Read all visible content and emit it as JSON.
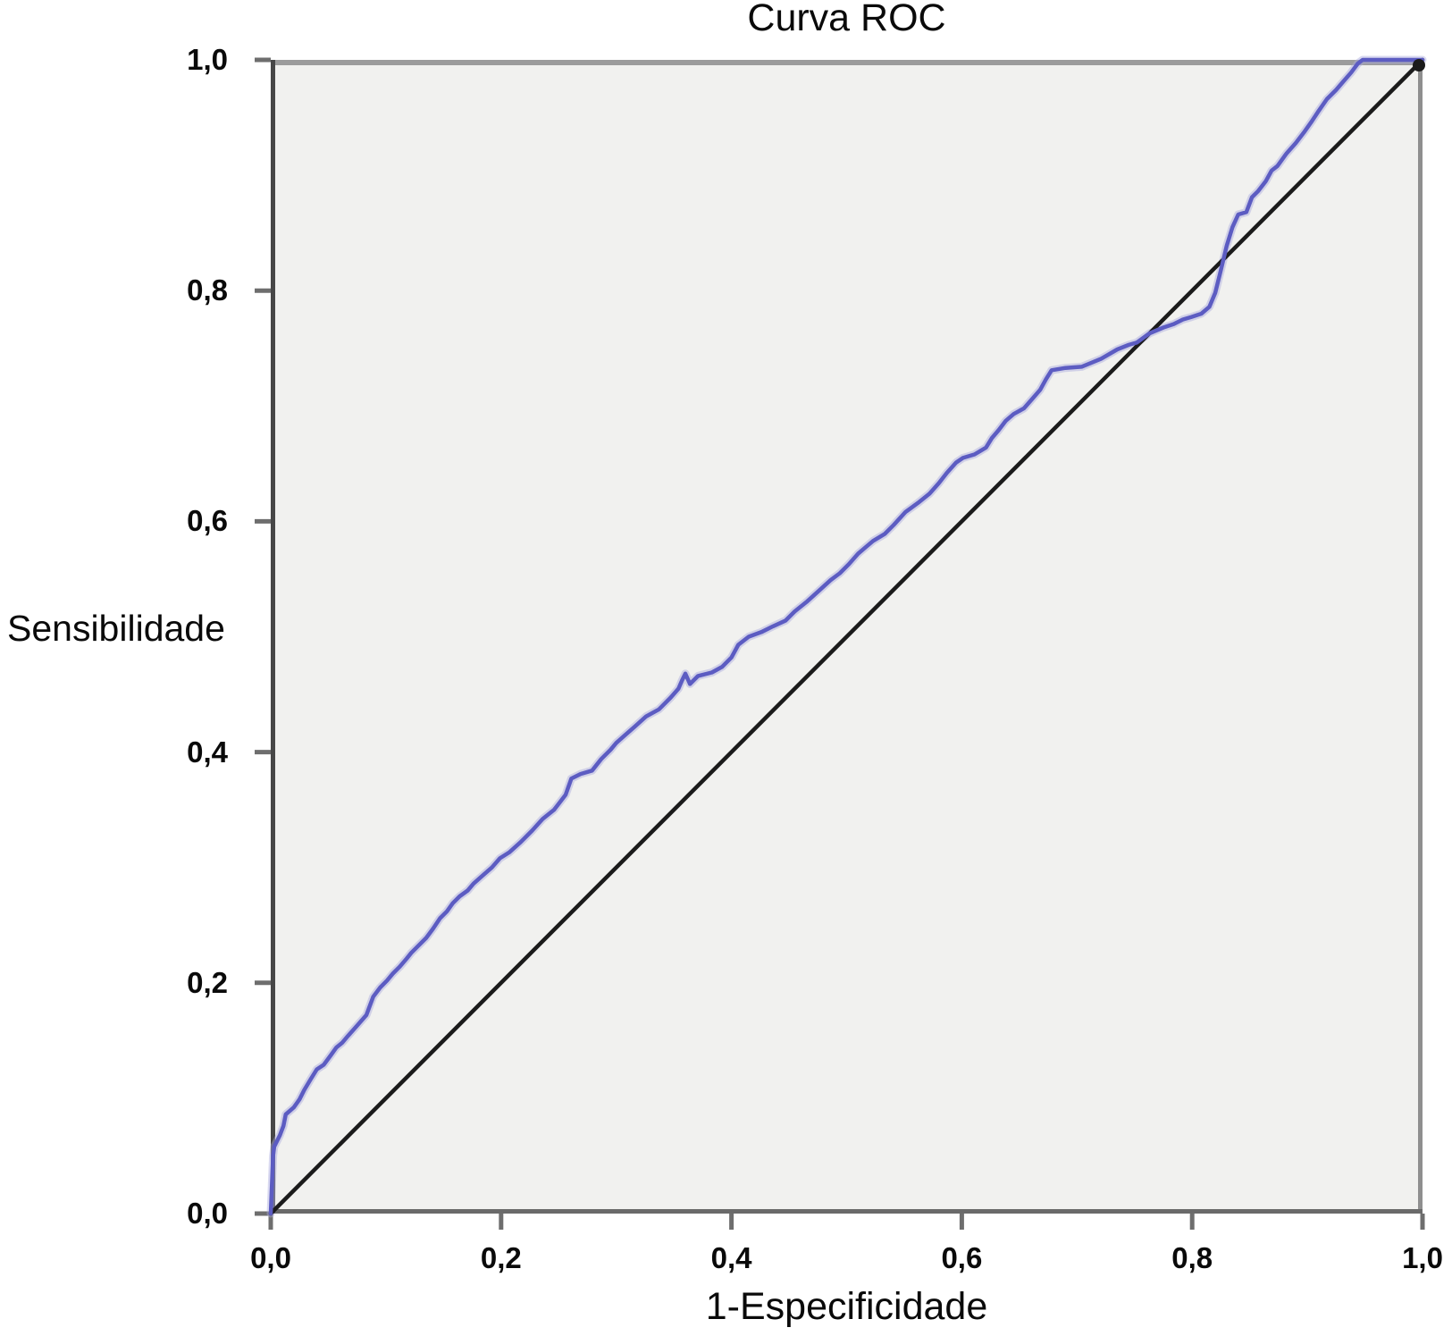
{
  "title": "Curva ROC",
  "axes": {
    "x_label": "1-Especificidade",
    "y_label": "Sensibilidade",
    "x_tick_labels": [
      "0,0",
      "0,2",
      "0,4",
      "0,6",
      "0,8",
      "1,0"
    ],
    "y_tick_labels": [
      "1,0",
      "0,8",
      "0,6",
      "0,4",
      "0,2",
      "0,0"
    ]
  },
  "colors": {
    "curve": "#5c5cc2",
    "curve_halo": "#a9a9de",
    "diagonal": "#1b1b1b",
    "plot_background": "#f1f1ef",
    "axis_left": "#474747",
    "axis_bottom": "#6a6a6a",
    "border_top": "#9c9c9c",
    "border_right": "#8f8f8f",
    "tick": "#6e6e6e",
    "text": "#0a0a0a"
  },
  "chart_data": {
    "type": "line",
    "title": "Curva ROC",
    "xlabel": "1-Especificidade",
    "ylabel": "Sensibilidade",
    "xlim": [
      0,
      1
    ],
    "ylim": [
      0,
      1
    ],
    "x_tick_values": [
      0.0,
      0.2,
      0.4,
      0.6,
      0.8,
      1.0
    ],
    "y_tick_values": [
      0.0,
      0.2,
      0.4,
      0.6,
      0.8,
      1.0
    ],
    "grid": false,
    "legend": "none",
    "series": [
      {
        "name": "ROC",
        "color": "#5c5cc2",
        "points": [
          [
            0.0,
            0.0
          ],
          [
            0.002,
            0.05
          ],
          [
            0.003,
            0.058
          ],
          [
            0.008,
            0.068
          ],
          [
            0.011,
            0.076
          ],
          [
            0.013,
            0.086
          ],
          [
            0.02,
            0.092
          ],
          [
            0.025,
            0.099
          ],
          [
            0.029,
            0.107
          ],
          [
            0.035,
            0.117
          ],
          [
            0.04,
            0.125
          ],
          [
            0.046,
            0.129
          ],
          [
            0.052,
            0.137
          ],
          [
            0.057,
            0.144
          ],
          [
            0.062,
            0.148
          ],
          [
            0.067,
            0.154
          ],
          [
            0.075,
            0.163
          ],
          [
            0.083,
            0.172
          ],
          [
            0.089,
            0.188
          ],
          [
            0.095,
            0.196
          ],
          [
            0.101,
            0.202
          ],
          [
            0.106,
            0.208
          ],
          [
            0.112,
            0.214
          ],
          [
            0.118,
            0.221
          ],
          [
            0.122,
            0.226
          ],
          [
            0.127,
            0.231
          ],
          [
            0.135,
            0.239
          ],
          [
            0.141,
            0.247
          ],
          [
            0.147,
            0.256
          ],
          [
            0.153,
            0.262
          ],
          [
            0.158,
            0.269
          ],
          [
            0.164,
            0.275
          ],
          [
            0.171,
            0.28
          ],
          [
            0.176,
            0.286
          ],
          [
            0.184,
            0.293
          ],
          [
            0.192,
            0.3
          ],
          [
            0.199,
            0.308
          ],
          [
            0.207,
            0.313
          ],
          [
            0.217,
            0.322
          ],
          [
            0.227,
            0.332
          ],
          [
            0.236,
            0.342
          ],
          [
            0.246,
            0.35
          ],
          [
            0.256,
            0.363
          ],
          [
            0.261,
            0.377
          ],
          [
            0.269,
            0.381
          ],
          [
            0.279,
            0.384
          ],
          [
            0.287,
            0.394
          ],
          [
            0.295,
            0.402
          ],
          [
            0.3,
            0.408
          ],
          [
            0.308,
            0.415
          ],
          [
            0.316,
            0.422
          ],
          [
            0.326,
            0.431
          ],
          [
            0.337,
            0.437
          ],
          [
            0.347,
            0.447
          ],
          [
            0.354,
            0.455
          ],
          [
            0.357,
            0.462
          ],
          [
            0.36,
            0.468
          ],
          [
            0.364,
            0.459
          ],
          [
            0.371,
            0.466
          ],
          [
            0.383,
            0.469
          ],
          [
            0.392,
            0.474
          ],
          [
            0.4,
            0.482
          ],
          [
            0.406,
            0.493
          ],
          [
            0.415,
            0.5
          ],
          [
            0.426,
            0.504
          ],
          [
            0.436,
            0.509
          ],
          [
            0.447,
            0.514
          ],
          [
            0.455,
            0.522
          ],
          [
            0.465,
            0.53
          ],
          [
            0.476,
            0.54
          ],
          [
            0.486,
            0.549
          ],
          [
            0.494,
            0.555
          ],
          [
            0.502,
            0.563
          ],
          [
            0.51,
            0.572
          ],
          [
            0.517,
            0.578
          ],
          [
            0.523,
            0.583
          ],
          [
            0.533,
            0.589
          ],
          [
            0.541,
            0.597
          ],
          [
            0.551,
            0.608
          ],
          [
            0.562,
            0.616
          ],
          [
            0.572,
            0.624
          ],
          [
            0.58,
            0.633
          ],
          [
            0.587,
            0.642
          ],
          [
            0.595,
            0.651
          ],
          [
            0.601,
            0.655
          ],
          [
            0.611,
            0.658
          ],
          [
            0.621,
            0.664
          ],
          [
            0.626,
            0.672
          ],
          [
            0.632,
            0.679
          ],
          [
            0.638,
            0.687
          ],
          [
            0.645,
            0.693
          ],
          [
            0.654,
            0.698
          ],
          [
            0.661,
            0.706
          ],
          [
            0.668,
            0.714
          ],
          [
            0.673,
            0.723
          ],
          [
            0.678,
            0.731
          ],
          [
            0.69,
            0.733
          ],
          [
            0.704,
            0.734
          ],
          [
            0.714,
            0.738
          ],
          [
            0.721,
            0.741
          ],
          [
            0.735,
            0.749
          ],
          [
            0.745,
            0.753
          ],
          [
            0.752,
            0.755
          ],
          [
            0.763,
            0.763
          ],
          [
            0.775,
            0.768
          ],
          [
            0.784,
            0.771
          ],
          [
            0.792,
            0.775
          ],
          [
            0.799,
            0.777
          ],
          [
            0.808,
            0.78
          ],
          [
            0.815,
            0.786
          ],
          [
            0.82,
            0.798
          ],
          [
            0.825,
            0.818
          ],
          [
            0.83,
            0.839
          ],
          [
            0.835,
            0.855
          ],
          [
            0.84,
            0.866
          ],
          [
            0.847,
            0.868
          ],
          [
            0.852,
            0.881
          ],
          [
            0.857,
            0.886
          ],
          [
            0.864,
            0.895
          ],
          [
            0.869,
            0.904
          ],
          [
            0.874,
            0.908
          ],
          [
            0.882,
            0.919
          ],
          [
            0.89,
            0.928
          ],
          [
            0.897,
            0.937
          ],
          [
            0.904,
            0.947
          ],
          [
            0.91,
            0.956
          ],
          [
            0.917,
            0.966
          ],
          [
            0.925,
            0.974
          ],
          [
            0.931,
            0.981
          ],
          [
            0.938,
            0.989
          ],
          [
            0.944,
            0.997
          ],
          [
            0.948,
            1.0
          ],
          [
            1.0,
            1.0
          ]
        ]
      },
      {
        "name": "reference_diagonal",
        "color": "#1b1b1b",
        "points": [
          [
            0,
            0
          ],
          [
            1,
            1
          ]
        ]
      }
    ]
  }
}
